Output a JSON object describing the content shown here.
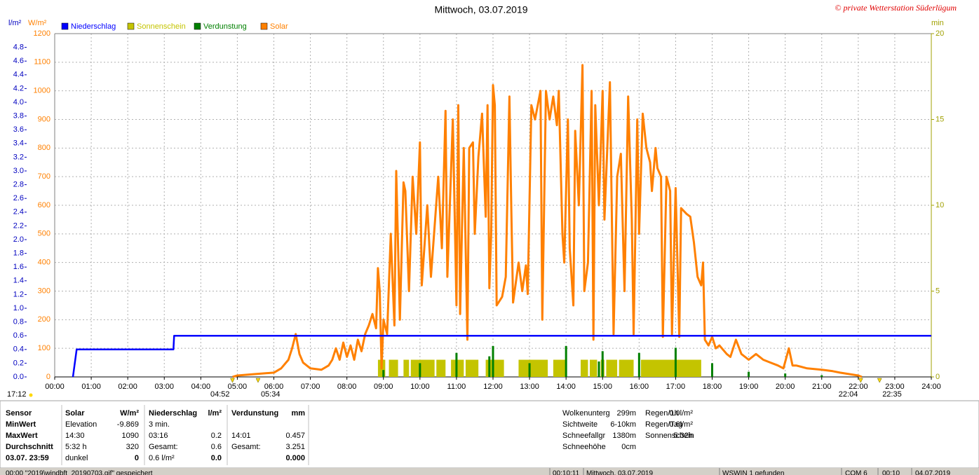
{
  "chart_data": {
    "type": "weather",
    "title": "Mittwoch, 03.07.2019",
    "copyright": "© private Wetterstation Süderlügum",
    "y_label": "W/m²",
    "y2_label": "l/m²",
    "y3_label": "min",
    "xlim": [
      0,
      24
    ],
    "xticks": [
      {
        "value": 0,
        "label": "00:00"
      },
      {
        "value": 1,
        "label": "01:00"
      },
      {
        "value": 2,
        "label": "02:00"
      },
      {
        "value": 3,
        "label": "03:00"
      },
      {
        "value": 4,
        "label": "04:00"
      },
      {
        "value": 5,
        "label": "05:00"
      },
      {
        "value": 6,
        "label": "06:00"
      },
      {
        "value": 7,
        "label": "07:00"
      },
      {
        "value": 8,
        "label": "08:00"
      },
      {
        "value": 9,
        "label": "09:00"
      },
      {
        "value": 10,
        "label": "10:00"
      },
      {
        "value": 11,
        "label": "11:00"
      },
      {
        "value": 12,
        "label": "12:00"
      },
      {
        "value": 13,
        "label": "13:00"
      },
      {
        "value": 14,
        "label": "14:00"
      },
      {
        "value": 15,
        "label": "15:00"
      },
      {
        "value": 16,
        "label": "16:00"
      },
      {
        "value": 17,
        "label": "17:00"
      },
      {
        "value": 18,
        "label": "18:00"
      },
      {
        "value": 19,
        "label": "19:00"
      },
      {
        "value": 20,
        "label": "20:00"
      },
      {
        "value": 21,
        "label": "21:00"
      },
      {
        "value": 22,
        "label": "22:00"
      },
      {
        "value": 23,
        "label": "23:00"
      },
      {
        "value": 24,
        "label": "24:00"
      }
    ],
    "ylim": [
      0,
      1200
    ],
    "yticks": [
      0,
      100,
      200,
      300,
      400,
      500,
      600,
      700,
      800,
      900,
      1000,
      1100,
      1200
    ],
    "y2lim": [
      0,
      5
    ],
    "y2ticks": [
      {
        "value": 0,
        "label": "0.0"
      },
      0.2,
      0.4,
      0.6,
      0.8,
      {
        "value": 1,
        "label": "1.0"
      },
      1.2,
      1.4,
      1.6,
      1.8,
      {
        "value": 2,
        "label": "2.0"
      },
      2.2,
      2.4,
      2.6,
      2.8,
      {
        "value": 3,
        "label": "3.0"
      },
      3.2,
      3.4,
      3.6,
      3.8,
      {
        "value": 4,
        "label": "4.0"
      },
      4.2,
      4.4,
      4.6,
      4.8
    ],
    "y3lim": [
      0,
      20
    ],
    "y3ticks": [
      0,
      5,
      10,
      15,
      20
    ],
    "grid": true,
    "left_label": "17:12",
    "annotations": [
      {
        "text": "04:52",
        "x": 4.867,
        "side": "left"
      },
      {
        "text": "05:34",
        "x": 5.567,
        "side": "right"
      },
      {
        "text": "22:04",
        "x": 22.067,
        "side": "left"
      },
      {
        "text": "22:35",
        "x": 22.583,
        "side": "right"
      }
    ],
    "series": [
      {
        "name": "Niederschlag",
        "type": "line",
        "color": "#0000ff",
        "axis": "y2",
        "x": [
          0.5,
          0.6,
          3.25,
          3.27,
          24
        ],
        "values": [
          0,
          0.4,
          0.4,
          0.6,
          0.6
        ]
      },
      {
        "name": "Sonnenschein",
        "type": "span",
        "color": "#c4c400",
        "axis": "y3",
        "x": [
          8.85,
          9.15,
          9.55,
          9.75,
          10.45,
          10.85,
          11.25,
          11.8,
          12.7,
          13.65,
          14.4,
          14.65,
          14.95,
          15.1,
          15.45,
          16.05
        ],
        "x_end": [
          9.05,
          9.4,
          9.7,
          10.4,
          10.7,
          11.2,
          11.6,
          12.3,
          13.5,
          14.0,
          14.6,
          14.85,
          15.05,
          15.4,
          15.85,
          17.7
        ],
        "values": [
          1,
          1,
          1,
          1,
          1,
          1,
          1,
          1,
          1,
          1,
          1,
          1,
          1,
          1,
          1,
          1
        ]
      },
      {
        "name": "Verdunstung",
        "type": "bar",
        "color": "#008000",
        "axis": "y3",
        "x": [
          9.0,
          10.0,
          11.0,
          11.9,
          12.0,
          13.0,
          14.0,
          14.9,
          15.0,
          16.0,
          17.0,
          18.0,
          19.0,
          20.0,
          21.0
        ],
        "values": [
          0.4,
          0.8,
          1.4,
          1.2,
          1.8,
          0.8,
          1.8,
          0.9,
          1.5,
          1.4,
          1.7,
          0.8,
          0.3,
          0.2,
          0.1
        ]
      },
      {
        "name": "Solar",
        "type": "line",
        "color": "#ff8000",
        "axis": "y",
        "x": [
          4.87,
          5.0,
          5.5,
          6.0,
          6.2,
          6.4,
          6.5,
          6.6,
          6.7,
          6.8,
          7.0,
          7.3,
          7.5,
          7.6,
          7.7,
          7.8,
          7.9,
          8.0,
          8.1,
          8.2,
          8.3,
          8.4,
          8.5,
          8.6,
          8.7,
          8.8,
          8.85,
          8.9,
          8.95,
          9.0,
          9.1,
          9.2,
          9.3,
          9.35,
          9.45,
          9.55,
          9.6,
          9.7,
          9.8,
          9.9,
          10.0,
          10.05,
          10.2,
          10.3,
          10.5,
          10.6,
          10.7,
          10.75,
          10.9,
          11.0,
          11.05,
          11.1,
          11.2,
          11.3,
          11.35,
          11.45,
          11.5,
          11.6,
          11.7,
          11.8,
          11.85,
          11.9,
          11.95,
          12.0,
          12.05,
          12.1,
          12.25,
          12.35,
          12.45,
          12.5,
          12.55,
          12.7,
          12.8,
          12.9,
          12.95,
          13.05,
          13.15,
          13.3,
          13.35,
          13.45,
          13.55,
          13.65,
          13.75,
          13.8,
          13.9,
          13.95,
          14.05,
          14.1,
          14.2,
          14.25,
          14.35,
          14.45,
          14.5,
          14.6,
          14.7,
          14.75,
          14.8,
          14.9,
          15.0,
          15.05,
          15.2,
          15.3,
          15.4,
          15.5,
          15.6,
          15.7,
          15.8,
          15.85,
          15.95,
          16.0,
          16.1,
          16.2,
          16.3,
          16.35,
          16.45,
          16.5,
          16.6,
          16.65,
          16.75,
          16.85,
          16.9,
          17.0,
          17.1,
          17.15,
          17.3,
          17.4,
          17.5,
          17.6,
          17.7,
          17.75,
          17.8,
          17.9,
          18.0,
          18.1,
          18.2,
          18.4,
          18.5,
          18.65,
          18.8,
          19.0,
          19.2,
          19.4,
          19.6,
          19.8,
          19.95,
          20.1,
          20.2,
          20.3,
          20.6,
          21.0,
          21.3,
          21.5,
          22.0,
          22.1
        ],
        "values": [
          0,
          5,
          10,
          15,
          30,
          60,
          100,
          150,
          80,
          50,
          30,
          25,
          40,
          60,
          100,
          60,
          120,
          70,
          110,
          60,
          130,
          90,
          150,
          180,
          220,
          170,
          380,
          300,
          30,
          200,
          150,
          500,
          180,
          720,
          200,
          680,
          650,
          300,
          700,
          500,
          820,
          320,
          600,
          350,
          700,
          450,
          930,
          350,
          900,
          250,
          950,
          220,
          800,
          130,
          800,
          820,
          500,
          770,
          920,
          560,
          950,
          310,
          500,
          1020,
          950,
          250,
          280,
          350,
          980,
          600,
          260,
          400,
          300,
          390,
          290,
          950,
          900,
          1000,
          200,
          1000,
          900,
          980,
          880,
          1000,
          500,
          400,
          900,
          450,
          250,
          860,
          600,
          1090,
          300,
          400,
          1000,
          130,
          950,
          600,
          1000,
          550,
          1030,
          150,
          700,
          780,
          300,
          980,
          550,
          150,
          900,
          500,
          920,
          800,
          750,
          650,
          800,
          730,
          700,
          140,
          700,
          650,
          150,
          660,
          140,
          590,
          570,
          560,
          470,
          350,
          320,
          400,
          130,
          110,
          140,
          100,
          110,
          80,
          70,
          130,
          80,
          60,
          80,
          60,
          50,
          40,
          30,
          100,
          40,
          40,
          30,
          25,
          20,
          15,
          5,
          0
        ]
      }
    ]
  },
  "stats": {
    "sensor": {
      "header": "Sensor",
      "rows": [
        "MinWert",
        "MaxWert",
        "Durchschnitt",
        "03.07. 23:59"
      ]
    },
    "columns": [
      {
        "header": "Solar",
        "unit": "W/m²",
        "rows": [
          {
            "left": "Elevation",
            "right": "-9.869"
          },
          {
            "left": "14:30",
            "right": "1090"
          },
          {
            "left": "5:32 h",
            "right": "320"
          },
          {
            "left": "dunkel",
            "right": "0"
          }
        ]
      },
      {
        "header": "Niederschlag",
        "unit": "l/m²",
        "rows": [
          {
            "left": "3 min."
          },
          {
            "left": "03:16",
            "right": "0.2"
          },
          {
            "left": "Gesamt:",
            "right": "0.6"
          },
          {
            "left": "0.6 l/m²",
            "right": "0.0"
          }
        ]
      },
      {
        "header": "Verdunstung",
        "unit": "mm",
        "rows": [
          {},
          {
            "left": "14:01",
            "right": "0.457"
          },
          {
            "left": "Gesamt:",
            "right": "3.251"
          },
          {
            "right": "0.000"
          }
        ]
      }
    ],
    "extra1": [
      {
        "left": "Wolkenunterg",
        "right": "299m"
      },
      {
        "left": "Sichtweite",
        "right": "6-10km"
      },
      {
        "left": "Schneefallgr",
        "right": "1380m"
      },
      {
        "left": "Schneehöhe",
        "right": "0cm"
      }
    ],
    "extra2": [
      {
        "left": "Regen/1h",
        "right": "0.0l/m²"
      },
      {
        "left": "Regen/Tag",
        "right": "0.6l/m²"
      },
      {
        "left": "Sonnenschein",
        "right": "5:32h"
      }
    ]
  },
  "status_bar": [
    "00:00  \"2019\\windbft_20190703.gif\" gespeichert",
    "00:10:11",
    "Mittwoch, 03.07.2019",
    "WSWIN 1 gefunden",
    "COM 6",
    "00:10",
    "04.07.2019"
  ]
}
